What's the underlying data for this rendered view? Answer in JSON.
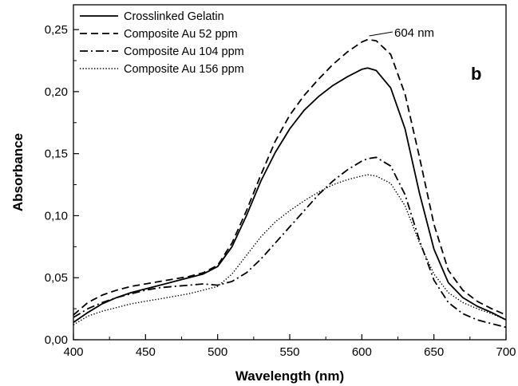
{
  "chart_data": {
    "type": "line",
    "xlabel": "Wavelength (nm)",
    "ylabel": "Absorbance",
    "xlim": [
      400,
      700
    ],
    "ylim": [
      0.0,
      0.27
    ],
    "x_ticks": [
      400,
      450,
      500,
      550,
      600,
      650,
      700
    ],
    "y_ticks": [
      "0,00",
      "0,05",
      "0,10",
      "0,15",
      "0,20",
      "0,25"
    ],
    "grid": false,
    "legend_position": "top-left",
    "panel_label": "b",
    "annotation": {
      "text": "604 nm",
      "x": 604,
      "y": 0.243
    },
    "x": [
      400,
      410,
      420,
      430,
      440,
      450,
      460,
      470,
      480,
      490,
      500,
      510,
      520,
      530,
      540,
      550,
      560,
      570,
      580,
      590,
      600,
      604,
      610,
      620,
      630,
      640,
      650,
      660,
      670,
      680,
      690,
      700
    ],
    "series": [
      {
        "name": "Crosslinked Gelatin",
        "style": "solid",
        "values": [
          0.014,
          0.022,
          0.029,
          0.034,
          0.038,
          0.041,
          0.044,
          0.047,
          0.05,
          0.053,
          0.059,
          0.075,
          0.1,
          0.128,
          0.151,
          0.17,
          0.185,
          0.196,
          0.205,
          0.212,
          0.218,
          0.219,
          0.217,
          0.203,
          0.17,
          0.118,
          0.073,
          0.046,
          0.034,
          0.027,
          0.022,
          0.016
        ]
      },
      {
        "name": "Composite Au 52 ppm",
        "style": "dashed",
        "values": [
          0.02,
          0.03,
          0.036,
          0.04,
          0.043,
          0.045,
          0.047,
          0.049,
          0.051,
          0.054,
          0.06,
          0.078,
          0.104,
          0.133,
          0.16,
          0.181,
          0.197,
          0.21,
          0.222,
          0.232,
          0.24,
          0.242,
          0.241,
          0.23,
          0.198,
          0.147,
          0.093,
          0.056,
          0.04,
          0.031,
          0.025,
          0.02
        ]
      },
      {
        "name": "Composite Au 104 ppm",
        "style": "dashdot",
        "values": [
          0.018,
          0.025,
          0.03,
          0.034,
          0.037,
          0.04,
          0.042,
          0.043,
          0.044,
          0.045,
          0.044,
          0.047,
          0.054,
          0.065,
          0.078,
          0.091,
          0.104,
          0.117,
          0.128,
          0.137,
          0.144,
          0.146,
          0.147,
          0.14,
          0.117,
          0.08,
          0.048,
          0.03,
          0.021,
          0.016,
          0.013,
          0.01
        ]
      },
      {
        "name": "Composite Au 156 ppm",
        "style": "dotted",
        "values": [
          0.012,
          0.019,
          0.023,
          0.026,
          0.029,
          0.031,
          0.033,
          0.035,
          0.037,
          0.04,
          0.043,
          0.053,
          0.068,
          0.083,
          0.095,
          0.104,
          0.112,
          0.119,
          0.125,
          0.129,
          0.132,
          0.133,
          0.132,
          0.126,
          0.108,
          0.078,
          0.053,
          0.038,
          0.03,
          0.025,
          0.021,
          0.016
        ]
      }
    ]
  }
}
